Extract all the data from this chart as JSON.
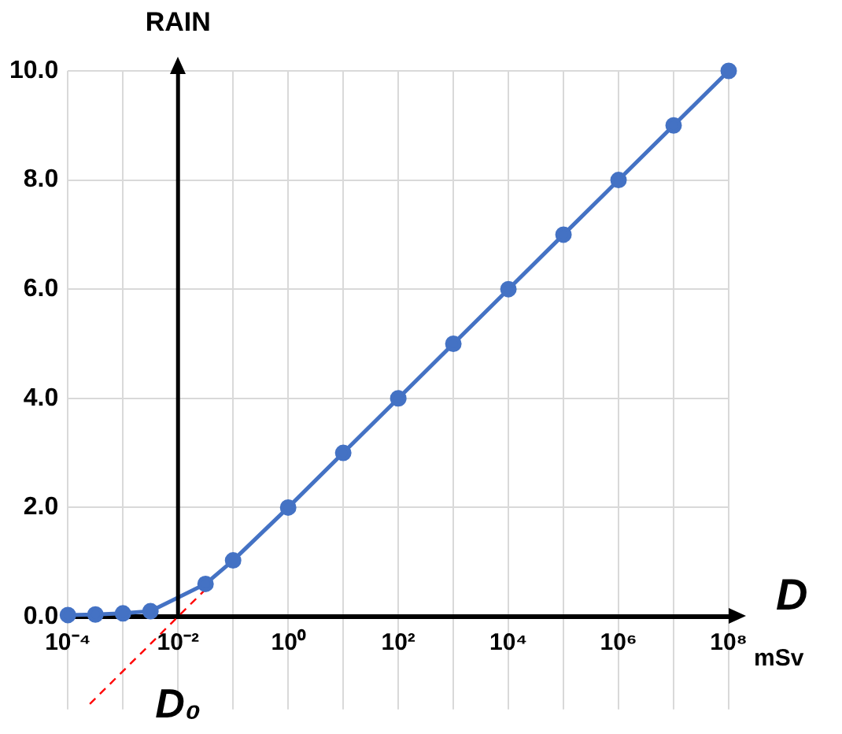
{
  "chart_data": {
    "type": "line",
    "ylabel": "RAIN",
    "xlabel": "D",
    "log": "x",
    "grid": true,
    "legend": false,
    "marker": "circle",
    "x": [
      0.0001,
      0.000316,
      0.001,
      0.00316,
      0.0316,
      0.1,
      1,
      10,
      100,
      1000,
      10000,
      100000,
      1000000,
      10000000,
      100000000
    ],
    "series": [
      {
        "color": "#4472c4",
        "values": [
          0.03,
          0.04,
          0.06,
          0.1,
          0.6,
          1.03,
          2,
          3,
          4,
          5,
          6,
          7,
          8,
          9,
          10
        ]
      },
      {
        "type": "line",
        "color": "#ff0000",
        "line_style": "dashed",
        "marker": "none",
        "x": [
          0.00025,
          0.0316
        ],
        "values": [
          -1.6,
          0.5
        ]
      }
    ],
    "xlim": [
      0.0001,
      100000000
    ],
    "xticks": [
      {
        "value": 0.0001,
        "label": "10⁻⁴"
      },
      {
        "value": 0.001,
        "label": null
      },
      {
        "value": 0.01,
        "label": "10⁻²"
      },
      {
        "value": 0.1,
        "label": null
      },
      {
        "value": 1,
        "label": "10⁰"
      },
      {
        "value": 10,
        "label": null
      },
      {
        "value": 100,
        "label": "10²"
      },
      {
        "value": 1000,
        "label": null
      },
      {
        "value": 10000,
        "label": "10⁴"
      },
      {
        "value": 100000,
        "label": null
      },
      {
        "value": 1000000,
        "label": "10⁶"
      },
      {
        "value": 10000000,
        "label": null
      },
      {
        "value": 100000000,
        "label": "10⁸"
      }
    ],
    "ylim": [
      -1.7,
      10
    ],
    "yticks": [
      {
        "value": 0,
        "label": "0.0"
      },
      {
        "value": 2,
        "label": "2.0"
      },
      {
        "value": 4,
        "label": "4.0"
      },
      {
        "value": 6,
        "label": "6.0"
      },
      {
        "value": 8,
        "label": "8.0"
      },
      {
        "value": 10,
        "label": "10.0"
      }
    ],
    "ref_lines": [
      {
        "axis": "x",
        "value": 0.01,
        "color": "#000000"
      }
    ],
    "annotations": [
      "mSv",
      {
        "text": "D₀",
        "x": 0.01,
        "y": 0
      }
    ]
  }
}
